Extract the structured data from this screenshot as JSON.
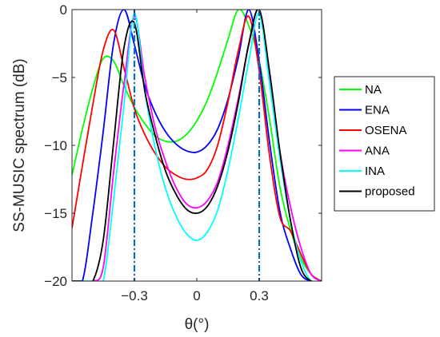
{
  "chart_data": {
    "type": "line",
    "xlabel": "θ(°)",
    "ylabel": "SS-MUSIC spectrum (dB)",
    "xlim": [
      -0.6,
      0.6
    ],
    "ylim": [
      -20,
      0
    ],
    "xticks": [
      -0.3,
      0,
      0.3
    ],
    "xtick_labels": [
      "−0.3",
      "0",
      "0.3"
    ],
    "yticks": [
      0,
      -5,
      -10,
      -15,
      -20
    ],
    "ytick_labels": [
      "0",
      "−5",
      "−10",
      "−15",
      "−20"
    ],
    "grid": false,
    "legend_position": "right",
    "vertical_markers": {
      "x": [
        -0.3,
        0.3
      ],
      "style": "dash-dot",
      "color": "#0072bd"
    },
    "series": [
      {
        "name": "NA",
        "color": "#00ff00",
        "x": [
          -0.6,
          -0.55,
          -0.5,
          -0.45,
          -0.4,
          -0.35,
          -0.3,
          -0.25,
          -0.2,
          -0.15,
          -0.1,
          -0.05,
          0,
          0.05,
          0.1,
          0.15,
          0.2,
          0.25,
          0.3,
          0.35,
          0.4,
          0.45,
          0.5,
          0.55,
          0.6
        ],
        "y": [
          -12.2,
          -8.8,
          -5.8,
          -3.6,
          -3.8,
          -5.6,
          -7.2,
          -8.4,
          -9.3,
          -9.7,
          -9.7,
          -9.2,
          -8.2,
          -6.7,
          -4.6,
          -2.2,
          0.0,
          -1.2,
          -3.8,
          -8.1,
          -13.1,
          -16.2,
          -18.3,
          -19.5,
          -20.0
        ]
      },
      {
        "name": "ENA",
        "color": "#0000ff",
        "x": [
          -0.6,
          -0.55,
          -0.5,
          -0.45,
          -0.4,
          -0.35,
          -0.3,
          -0.25,
          -0.2,
          -0.15,
          -0.1,
          -0.05,
          0,
          0.05,
          0.1,
          0.15,
          0.2,
          0.25,
          0.3,
          0.35,
          0.4,
          0.45,
          0.5,
          0.55,
          0.6
        ],
        "y": [
          -20.0,
          -20.0,
          -15.0,
          -9.0,
          -2.5,
          0.0,
          -2.6,
          -5.6,
          -7.6,
          -9.0,
          -9.9,
          -10.4,
          -10.5,
          -10.0,
          -8.8,
          -6.6,
          -3.5,
          0.0,
          -3.8,
          -9.8,
          -14.9,
          -17.6,
          -19.5,
          -20.0,
          -20.0
        ]
      },
      {
        "name": "OSENA",
        "color": "#ff0000",
        "x": [
          -0.6,
          -0.55,
          -0.5,
          -0.45,
          -0.4,
          -0.35,
          -0.3,
          -0.25,
          -0.2,
          -0.15,
          -0.1,
          -0.05,
          0,
          0.05,
          0.1,
          0.15,
          0.2,
          0.25,
          0.3,
          0.35,
          0.4,
          0.45,
          0.5,
          0.55,
          0.6
        ],
        "y": [
          -16.1,
          -11.5,
          -7.0,
          -3.0,
          -1.5,
          -4.3,
          -7.3,
          -9.2,
          -10.6,
          -11.6,
          -12.2,
          -12.5,
          -12.4,
          -11.8,
          -10.0,
          -6.8,
          -3.0,
          -0.5,
          -4.5,
          -10.8,
          -15.3,
          -16.3,
          -18.0,
          -19.5,
          -20.0
        ]
      },
      {
        "name": "ANA",
        "color": "#ff00ff",
        "x": [
          -0.6,
          -0.55,
          -0.5,
          -0.45,
          -0.4,
          -0.35,
          -0.3,
          -0.25,
          -0.2,
          -0.15,
          -0.1,
          -0.05,
          0,
          0.05,
          0.1,
          0.15,
          0.2,
          0.25,
          0.3,
          0.35,
          0.4,
          0.45,
          0.5,
          0.55,
          0.6
        ],
        "y": [
          -20.0,
          -20.0,
          -20.0,
          -19.0,
          -12.0,
          -5.5,
          -0.5,
          -5.0,
          -8.7,
          -11.2,
          -13.1,
          -14.3,
          -14.6,
          -14.1,
          -12.7,
          -10.0,
          -6.5,
          -2.6,
          0.0,
          -5.0,
          -10.5,
          -14.5,
          -17.5,
          -19.5,
          -20.0
        ]
      },
      {
        "name": "INA",
        "color": "#00ffff",
        "x": [
          -0.6,
          -0.55,
          -0.5,
          -0.45,
          -0.4,
          -0.35,
          -0.3,
          -0.25,
          -0.2,
          -0.15,
          -0.1,
          -0.05,
          0,
          0.05,
          0.1,
          0.15,
          0.2,
          0.25,
          0.3,
          0.35,
          0.4,
          0.45,
          0.5,
          0.55,
          0.6
        ],
        "y": [
          -20.0,
          -20.0,
          -20.0,
          -20.0,
          -14.0,
          -7.0,
          -0.3,
          -6.0,
          -10.2,
          -13.2,
          -15.2,
          -16.5,
          -17.0,
          -16.4,
          -14.8,
          -11.8,
          -8.0,
          -3.8,
          -0.3,
          -5.5,
          -11.0,
          -15.5,
          -18.5,
          -20.0,
          -20.0
        ]
      },
      {
        "name": "proposed",
        "color": "#000000",
        "x": [
          -0.6,
          -0.55,
          -0.5,
          -0.45,
          -0.4,
          -0.35,
          -0.3,
          -0.25,
          -0.2,
          -0.15,
          -0.1,
          -0.05,
          0,
          0.05,
          0.1,
          0.15,
          0.2,
          0.25,
          0.3,
          0.35,
          0.4,
          0.45,
          0.5,
          0.55,
          0.6
        ],
        "y": [
          -20.0,
          -20.0,
          -20.0,
          -17.0,
          -9.8,
          -2.8,
          -1.0,
          -6.0,
          -9.3,
          -11.9,
          -13.6,
          -14.7,
          -15.0,
          -14.5,
          -13.0,
          -10.4,
          -6.8,
          -2.5,
          0.0,
          -4.6,
          -10.5,
          -15.5,
          -19.0,
          -20.0,
          -20.0
        ]
      }
    ]
  }
}
